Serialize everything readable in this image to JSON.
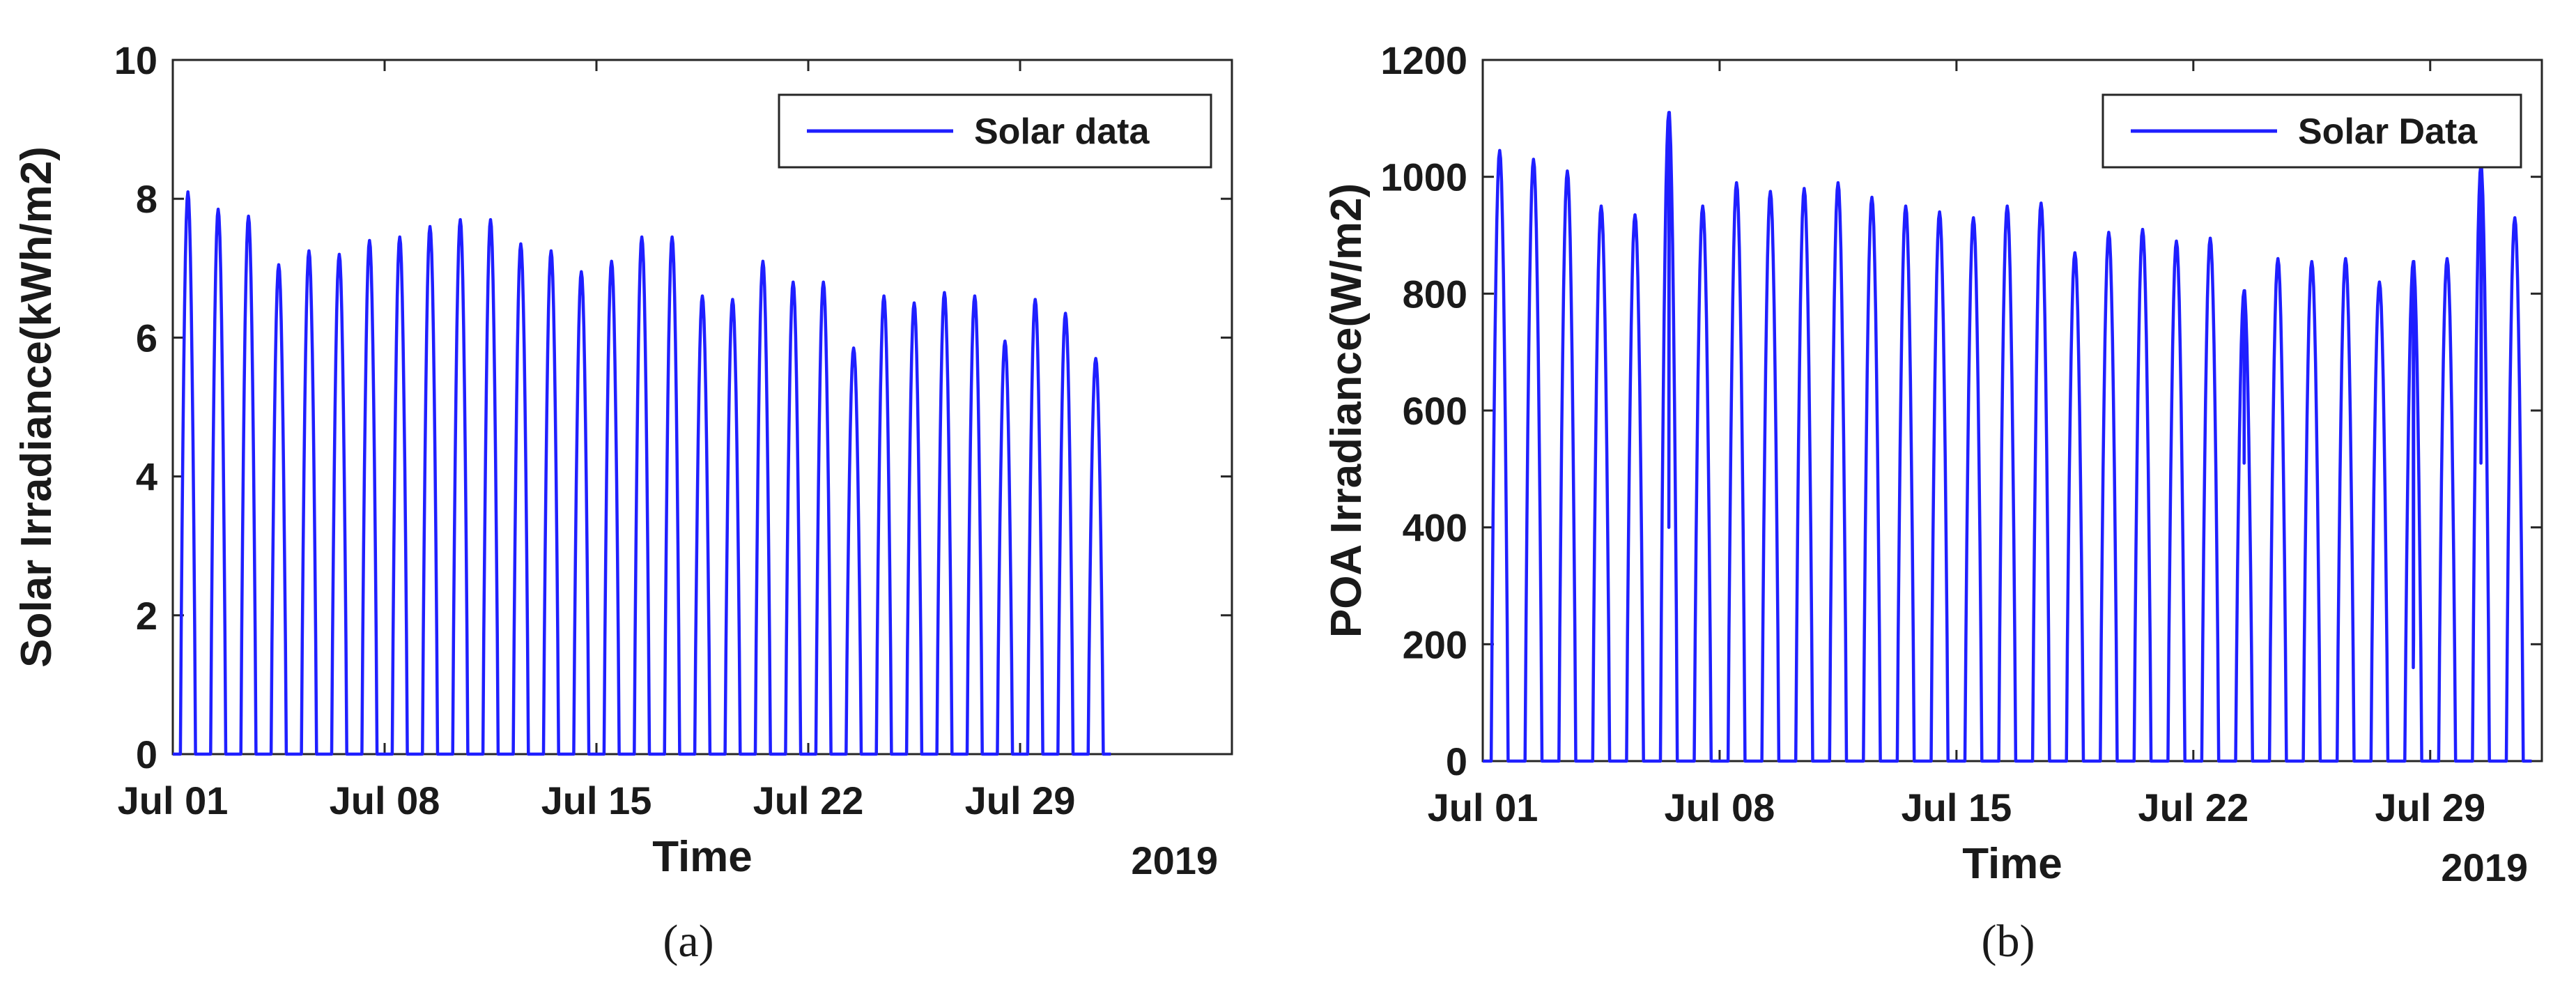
{
  "chart_data": [
    {
      "type": "line",
      "caption": "(a)",
      "xlabel": "Time",
      "ylabel": "Solar Irradiance(kWh/m2)",
      "year_label": "2019",
      "xlim": [
        0,
        35
      ],
      "ylim": [
        0,
        10
      ],
      "yticks": [
        0,
        2,
        4,
        6,
        8,
        10
      ],
      "xticks": [
        {
          "day": 0,
          "label": "Jul 01"
        },
        {
          "day": 7,
          "label": "Jul 08"
        },
        {
          "day": 14,
          "label": "Jul 15"
        },
        {
          "day": 21,
          "label": "Jul 22"
        },
        {
          "day": 28,
          "label": "Jul 29"
        }
      ],
      "grid": false,
      "legend_position": "top-right",
      "series": [
        {
          "name": "Solar data",
          "color": "#1f1fff",
          "daily_peaks": [
            8.1,
            7.85,
            7.75,
            7.05,
            7.25,
            7.2,
            7.4,
            7.45,
            7.6,
            7.7,
            7.7,
            7.35,
            7.25,
            6.95,
            7.1,
            7.45,
            7.45,
            6.6,
            6.55,
            7.1,
            6.8,
            6.8,
            5.85,
            6.6,
            6.5,
            6.65,
            6.6,
            5.95,
            6.55,
            6.35,
            5.7
          ]
        }
      ]
    },
    {
      "type": "line",
      "caption": "(b)",
      "xlabel": "Time",
      "ylabel": "POA Irradiance(W/m2)",
      "year_label": "2019",
      "xlim": [
        0,
        31.3
      ],
      "ylim": [
        0,
        1200
      ],
      "yticks": [
        0,
        200,
        400,
        600,
        800,
        1000,
        1200
      ],
      "xticks": [
        {
          "day": 0,
          "label": "Jul 01"
        },
        {
          "day": 7,
          "label": "Jul 08"
        },
        {
          "day": 14,
          "label": "Jul 15"
        },
        {
          "day": 21,
          "label": "Jul 22"
        },
        {
          "day": 28,
          "label": "Jul 29"
        }
      ],
      "grid": false,
      "legend_position": "top-right",
      "series": [
        {
          "name": "Solar Data",
          "color": "#1f1fff",
          "daily_peaks": [
            1045,
            1030,
            1010,
            950,
            935,
            1110,
            950,
            990,
            975,
            980,
            990,
            965,
            950,
            940,
            930,
            950,
            955,
            870,
            905,
            910,
            890,
            895,
            805,
            860,
            855,
            860,
            820,
            855,
            860,
            1020,
            930
          ],
          "dips": [
            {
              "day": 5,
              "min": 400,
              "max": 860
            },
            {
              "day": 22,
              "min": 510,
              "max": 730
            },
            {
              "day": 27,
              "min": 160,
              "max": 210
            },
            {
              "day": 29,
              "min": 510,
              "max": 640
            }
          ]
        }
      ]
    }
  ]
}
